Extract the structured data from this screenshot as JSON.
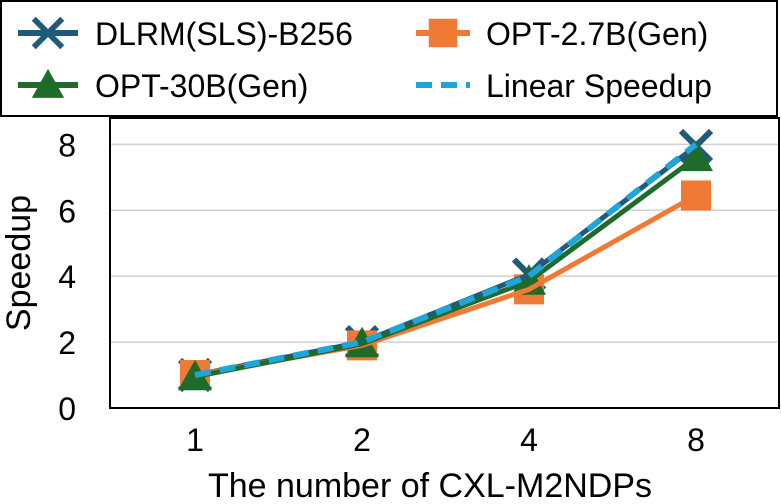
{
  "chart_data": {
    "type": "line",
    "x": [
      "1",
      "2",
      "4",
      "8"
    ],
    "xlabel": "The number of CXL-M2NDPs",
    "ylabel": "Speedup",
    "ylim": [
      0,
      8.8
    ],
    "yticks": [
      0,
      2,
      4,
      6,
      8
    ],
    "grid": true,
    "legend_position": "top",
    "series": [
      {
        "name": "DLRM(SLS)-B256",
        "values": [
          1.0,
          2.0,
          4.05,
          7.95
        ],
        "color": "#1f5a7a",
        "marker": "x-icon",
        "dash": "solid"
      },
      {
        "name": "OPT-2.7B(Gen)",
        "values": [
          1.0,
          1.9,
          3.6,
          6.45
        ],
        "color": "#f07a35",
        "marker": "square-icon",
        "dash": "solid"
      },
      {
        "name": "OPT-30B(Gen)",
        "values": [
          0.95,
          1.95,
          3.85,
          7.6
        ],
        "color": "#1e6b2a",
        "marker": "triangle-icon",
        "dash": "solid"
      },
      {
        "name": "Linear Speedup",
        "values": [
          1,
          2,
          4,
          8
        ],
        "color": "#1fa6d8",
        "marker": "none",
        "dash": "dashed"
      }
    ]
  }
}
